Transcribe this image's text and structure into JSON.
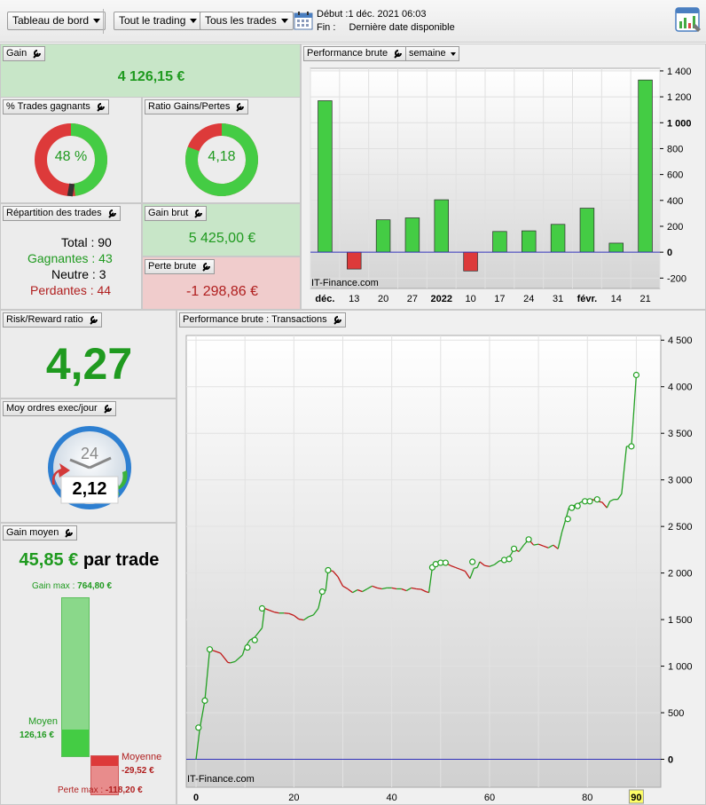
{
  "toolbar": {
    "dashboard_label": "Tableau de bord",
    "trading_label": "Tout le trading",
    "trades_label": "Tous les trades",
    "start_label": "Début :",
    "start_value": "1 déc. 2021 06:03",
    "end_label": "Fin :",
    "end_value": "Dernière date disponible",
    "calendar_icon": "calendar-icon",
    "report_icon": "report-chart-icon"
  },
  "gain": {
    "title": "Gain",
    "value": "4 126,15 €"
  },
  "winning_trades": {
    "title": "% Trades gagnants",
    "value": "48 %",
    "fraction": 0.48
  },
  "ratio": {
    "title": "Ratio Gains/Pertes",
    "value": "4,18",
    "fraction": 0.807
  },
  "distribution": {
    "title": "Répartition des trades",
    "total_label": "Total :",
    "total": "90",
    "winners_label": "Gagnantes :",
    "winners": "43",
    "neutral_label": "Neutre :",
    "neutral": "3",
    "losers_label": "Perdantes :",
    "losers": "44"
  },
  "gross_gain": {
    "title": "Gain brut",
    "value": "5 425,00 €"
  },
  "gross_loss": {
    "title": "Perte brute",
    "value": "-1 298,86 €"
  },
  "risk_reward": {
    "title": "Risk/Reward ratio",
    "value": "4,27"
  },
  "orders_per_day": {
    "title": "Moy ordres exec/jour",
    "clock_label": "24",
    "value": "2,12"
  },
  "avg_gain": {
    "title": "Gain moyen",
    "value": "45,85 €",
    "suffix": "par trade",
    "max_gain_label": "Gain max :",
    "max_gain": "764,80 €",
    "avg_label": "Moyen",
    "avg_value": "126,16 €",
    "mean_label": "Moyenne",
    "mean_value": "-29,52 €",
    "max_loss_label": "Perte max :",
    "max_loss": "-118,20 €",
    "max_gain_num": 764.8,
    "avg_num": 126.16,
    "mean_num": -29.52,
    "max_loss_num": -118.2
  },
  "weekly": {
    "title": "Performance brute",
    "period": "semaine",
    "watermark": "IT-Finance.com"
  },
  "transactions": {
    "title": "Performance brute : Transactions",
    "watermark": "IT-Finance.com"
  },
  "chart_data": [
    {
      "type": "bar",
      "categories": [
        "déc.",
        "13",
        "20",
        "27",
        "2022",
        "10",
        "17",
        "24",
        "31",
        "févr.",
        "14",
        "21"
      ],
      "bold_categories": [
        "déc.",
        "2022",
        "févr."
      ],
      "values": [
        1170,
        -130,
        250,
        265,
        405,
        -145,
        160,
        165,
        215,
        340,
        70,
        1330
      ],
      "ylim": [
        -280,
        1420
      ],
      "yticks": [
        -200,
        0,
        200,
        400,
        600,
        800,
        1000,
        1200,
        1400
      ],
      "ytick_labels": [
        "-200",
        "0",
        "200",
        "400",
        "600",
        "800",
        "1 000",
        "1 200",
        "1 400"
      ],
      "bold_ytick_labels": [
        "0",
        "1 000"
      ],
      "colors": {
        "positive": "#44cc44",
        "negative": "#dd3a3a",
        "zero_line": "#3333bb"
      },
      "grid": true
    },
    {
      "type": "line",
      "x": [
        0,
        0.8,
        1.8,
        2.8,
        5,
        6.5,
        7,
        8,
        9.5,
        10,
        11,
        12,
        13.5,
        14,
        15,
        16,
        17,
        18,
        19,
        20,
        21,
        22,
        23,
        24,
        25,
        25.8,
        26.5,
        27,
        28,
        29,
        30,
        31,
        32,
        33,
        34,
        35,
        36,
        37,
        38,
        39,
        40,
        41,
        42,
        43,
        44,
        45,
        46,
        47,
        47.6,
        48.3,
        49,
        50,
        51,
        52,
        53,
        54,
        55,
        56,
        56.8,
        57.5,
        58,
        59,
        60,
        61,
        62,
        63,
        63.6,
        64.4,
        65,
        66,
        67,
        68,
        69,
        70,
        71,
        72,
        73,
        74,
        74.8,
        75.6,
        76.2,
        77,
        78,
        79,
        80,
        81,
        82,
        83,
        84,
        84.6,
        85.4,
        86.2,
        87,
        88,
        89,
        90
      ],
      "values": [
        0,
        340,
        630,
        1180,
        1140,
        1040,
        1035,
        1050,
        1120,
        1200,
        1280,
        1310,
        1410,
        1620,
        1600,
        1580,
        1570,
        1570,
        1565,
        1545,
        1505,
        1495,
        1530,
        1550,
        1620,
        1800,
        1810,
        2030,
        2020,
        1960,
        1860,
        1830,
        1790,
        1820,
        1800,
        1830,
        1860,
        1840,
        1830,
        1840,
        1840,
        1830,
        1830,
        1810,
        1840,
        1830,
        1825,
        1800,
        1790,
        2060,
        2095,
        2110,
        2110,
        2080,
        2060,
        2040,
        2020,
        1940,
        2050,
        2060,
        2120,
        2080,
        2070,
        2090,
        2130,
        2140,
        2150,
        2200,
        2260,
        2230,
        2300,
        2360,
        2300,
        2310,
        2290,
        2270,
        2300,
        2260,
        2440,
        2580,
        2700,
        2720,
        2740,
        2770,
        2770,
        2790,
        2770,
        2760,
        2700,
        2770,
        2790,
        2790,
        2850,
        3360,
        3360,
        4126
      ],
      "markers": [
        [
          0.5,
          340
        ],
        [
          1.8,
          630
        ],
        [
          2.8,
          1180
        ],
        [
          10.5,
          1200
        ],
        [
          12,
          1280
        ],
        [
          13.5,
          1620
        ],
        [
          25.8,
          1800
        ],
        [
          27,
          2030
        ],
        [
          48.3,
          2060
        ],
        [
          49,
          2095
        ],
        [
          50,
          2110
        ],
        [
          51,
          2110
        ],
        [
          56.5,
          2120
        ],
        [
          63,
          2140
        ],
        [
          64,
          2150
        ],
        [
          65,
          2260
        ],
        [
          68,
          2360
        ],
        [
          76,
          2580
        ],
        [
          76.8,
          2700
        ],
        [
          78,
          2720
        ],
        [
          79.5,
          2770
        ],
        [
          80.5,
          2770
        ],
        [
          82,
          2790
        ],
        [
          89,
          3360
        ],
        [
          90,
          4126
        ]
      ],
      "xlim": [
        -2,
        95
      ],
      "ylim": [
        -300,
        4550
      ],
      "xticks": [
        0,
        20,
        40,
        60,
        80,
        90
      ],
      "bold_xticks": [
        0,
        90
      ],
      "highlight_xtick": 90,
      "yticks": [
        0,
        500,
        1000,
        1500,
        2000,
        2500,
        3000,
        3500,
        4000,
        4500
      ],
      "ytick_labels": [
        "0",
        "500",
        "1 000",
        "1 500",
        "2 000",
        "2 500",
        "3 000",
        "3 500",
        "4 000",
        "4 500"
      ],
      "bold_ytick_labels": [
        "0"
      ],
      "colors": {
        "up": "#22a022",
        "down": "#c01818",
        "zero_line": "#3333bb",
        "highlight_bg": "#ffff66"
      },
      "grid": true
    }
  ]
}
